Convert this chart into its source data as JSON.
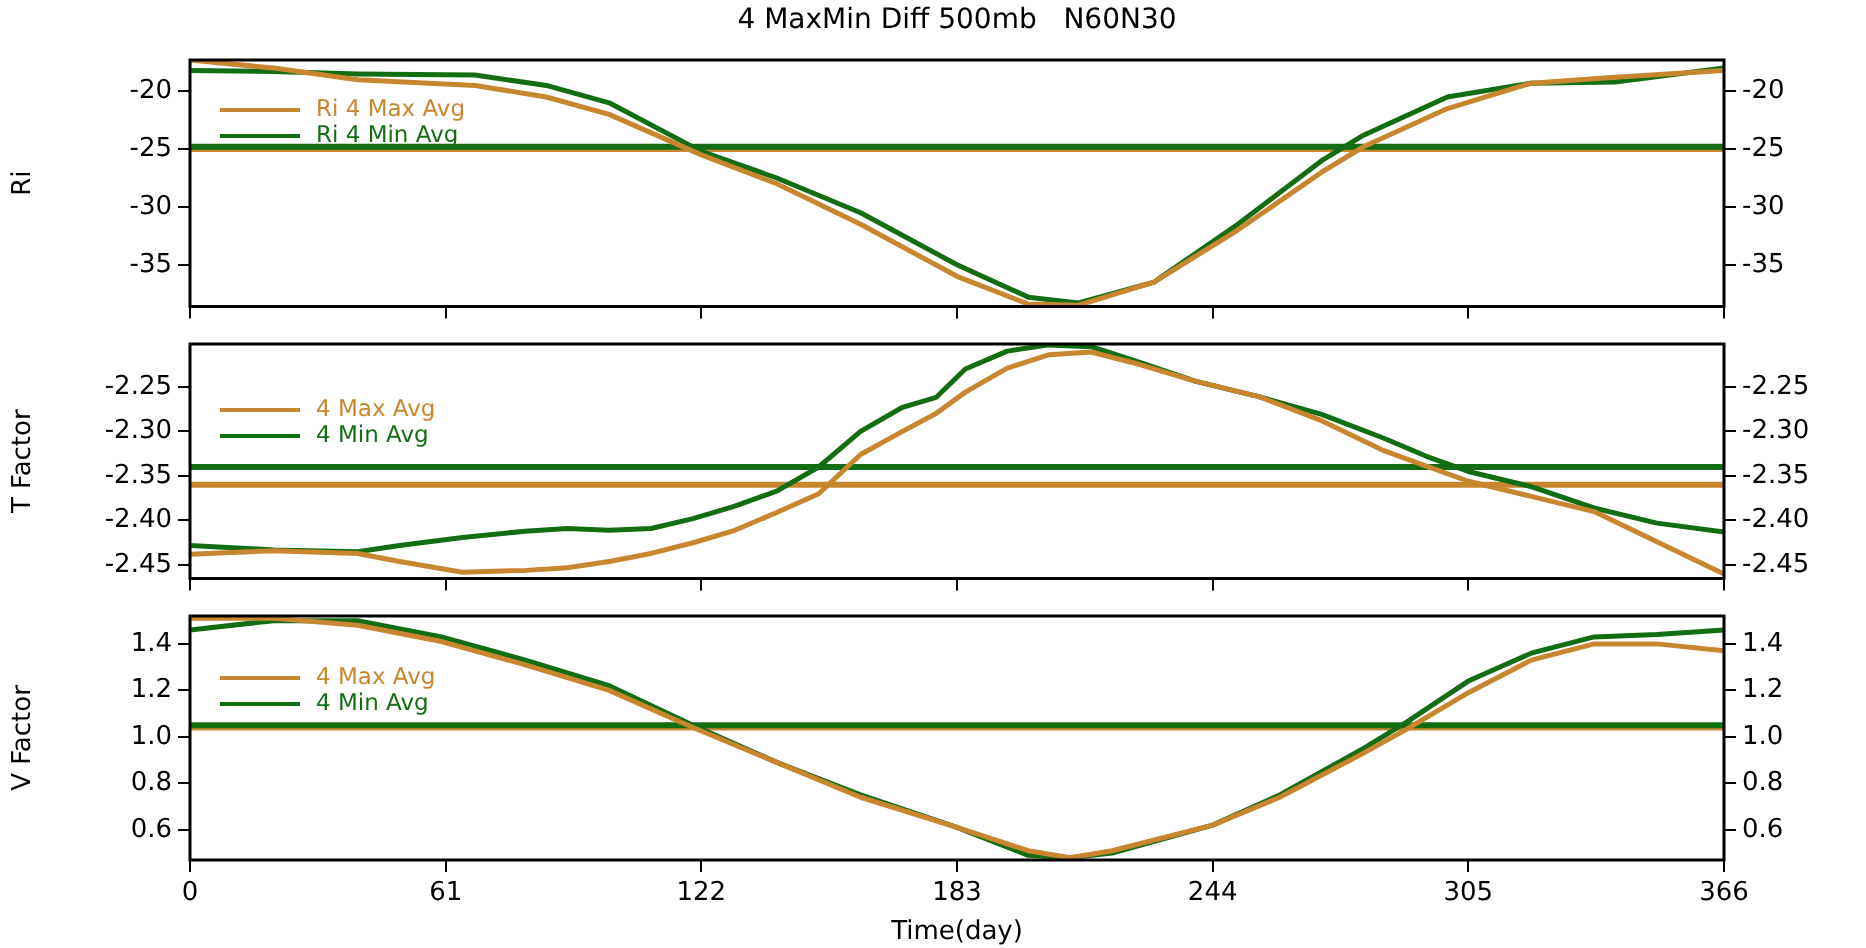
{
  "chart_data": [
    {
      "type": "line",
      "title": "4 MaxMin Diff 500mb   N60N30",
      "ylabel": "Ri",
      "xlim": [
        0,
        366
      ],
      "xticks": [
        0,
        61,
        122,
        183,
        244,
        305,
        366
      ],
      "ylim": [
        -38.6,
        -17.3
      ],
      "yticks": [
        -35,
        -30,
        -25,
        -20
      ],
      "y2lim": [
        -38.6,
        -17.3
      ],
      "y2ticks": [
        -35,
        -30,
        -25,
        -20
      ],
      "tick_labels": "y",
      "legend": "top left",
      "x": [
        0,
        20,
        40,
        68,
        85,
        100,
        122,
        140,
        160,
        183,
        200,
        212,
        230,
        250,
        270,
        280,
        300,
        320,
        340,
        366
      ],
      "ref_lines": [
        {
          "axis": "y",
          "value": -25.0,
          "color": "#c8862e"
        },
        {
          "axis": "y",
          "value": -24.8,
          "color": "#136d13"
        }
      ],
      "series": [
        {
          "name": "Ri 4 Max Avg",
          "color": "#c8862e",
          "values": [
            -17.3,
            -18,
            -19,
            -19.5,
            -20.5,
            -22,
            -25.5,
            -28,
            -31.5,
            -36,
            -38.4,
            -38.5,
            -36.5,
            -32,
            -27,
            -24.8,
            -21.5,
            -19.3,
            -18.8,
            -18.2
          ]
        },
        {
          "name": "Ri 4 Min Avg",
          "color": "#136d13",
          "values": [
            -18.2,
            -18.3,
            -18.5,
            -18.6,
            -19.5,
            -21,
            -25.2,
            -27.5,
            -30.5,
            -35,
            -37.8,
            -38.3,
            -36.5,
            -31.5,
            -26,
            -23.8,
            -20.5,
            -19.3,
            -19.2,
            -18
          ]
        }
      ]
    },
    {
      "type": "line",
      "ylabel": "T Factor",
      "xlim": [
        0,
        366
      ],
      "xticks": [
        0,
        61,
        122,
        183,
        244,
        305,
        366
      ],
      "ylim": [
        -2.465,
        -2.202
      ],
      "yticks": [
        -2.45,
        {
          "value": -2.4,
          "label": "-2.40"
        },
        -2.35,
        {
          "value": -2.3,
          "label": "-2.30"
        },
        -2.25
      ],
      "y2lim": [
        -2.465,
        -2.202
      ],
      "y2ticks": [
        -2.45,
        {
          "value": -2.4,
          "label": "-2.40"
        },
        -2.35,
        {
          "value": -2.3,
          "label": "-2.30"
        },
        -2.25
      ],
      "tick_labels": "y",
      "legend": "top left",
      "x": [
        0,
        20,
        40,
        50,
        65,
        80,
        90,
        100,
        110,
        120,
        130,
        140,
        150,
        160,
        170,
        178,
        185,
        195,
        205,
        215,
        225,
        240,
        255,
        270,
        285,
        295,
        305,
        320,
        335,
        350,
        366
      ],
      "ref_lines": [
        {
          "axis": "y",
          "value": -2.36,
          "color": "#c8862e"
        },
        {
          "axis": "y",
          "value": -2.34,
          "color": "#136d13"
        }
      ],
      "series": [
        {
          "name": "4 Max Avg",
          "color": "#c8862e",
          "values": [
            -2.438,
            -2.434,
            -2.437,
            -2.446,
            -2.458,
            -2.456,
            -2.453,
            -2.446,
            -2.437,
            -2.425,
            -2.411,
            -2.391,
            -2.37,
            -2.326,
            -2.3,
            -2.28,
            -2.256,
            -2.229,
            -2.214,
            -2.211,
            -2.223,
            -2.244,
            -2.261,
            -2.288,
            -2.322,
            -2.339,
            -2.356,
            -2.373,
            -2.39,
            -2.424,
            -2.46
          ]
        },
        {
          "name": "4 Min Avg",
          "color": "#136d13",
          "values": [
            -2.428,
            -2.433,
            -2.435,
            -2.428,
            -2.419,
            -2.412,
            -2.409,
            -2.411,
            -2.409,
            -2.398,
            -2.384,
            -2.367,
            -2.34,
            -2.3,
            -2.273,
            -2.262,
            -2.23,
            -2.21,
            -2.203,
            -2.205,
            -2.22,
            -2.244,
            -2.261,
            -2.281,
            -2.308,
            -2.328,
            -2.345,
            -2.362,
            -2.386,
            -2.403,
            -2.413
          ]
        }
      ]
    },
    {
      "type": "line",
      "xlabel": "Time(day)",
      "ylabel": "V Factor",
      "xlim": [
        0,
        366
      ],
      "xticks": [
        0,
        61,
        122,
        183,
        244,
        305,
        366
      ],
      "ylim": [
        0.47,
        1.52
      ],
      "yticks": [
        0.6,
        0.8,
        {
          "value": 1,
          "label": "1.0"
        },
        1.2,
        1.4
      ],
      "y2lim": [
        0.47,
        1.52
      ],
      "y2ticks": [
        0.6,
        0.8,
        {
          "value": 1,
          "label": "1.0"
        },
        1.2,
        1.4
      ],
      "legend": "top left",
      "x": [
        0,
        20,
        40,
        60,
        80,
        100,
        120,
        140,
        160,
        183,
        200,
        210,
        220,
        244,
        260,
        280,
        290,
        305,
        320,
        335,
        350,
        366
      ],
      "ref_lines": [
        {
          "axis": "y",
          "value": 1.04,
          "color": "#c8862e"
        },
        {
          "axis": "y",
          "value": 1.05,
          "color": "#136d13"
        }
      ],
      "series": [
        {
          "name": "4 Max Avg",
          "color": "#c8862e",
          "values": [
            1.51,
            1.51,
            1.48,
            1.41,
            1.31,
            1.2,
            1.04,
            0.89,
            0.74,
            0.61,
            0.51,
            0.48,
            0.51,
            0.62,
            0.74,
            0.93,
            1.03,
            1.19,
            1.33,
            1.4,
            1.4,
            1.37
          ]
        },
        {
          "name": "4 Min Avg",
          "color": "#136d13",
          "values": [
            1.46,
            1.5,
            1.5,
            1.43,
            1.33,
            1.22,
            1.05,
            0.89,
            0.75,
            0.61,
            0.49,
            0.48,
            0.5,
            0.62,
            0.75,
            0.95,
            1.06,
            1.24,
            1.36,
            1.43,
            1.44,
            1.46
          ]
        }
      ]
    }
  ]
}
